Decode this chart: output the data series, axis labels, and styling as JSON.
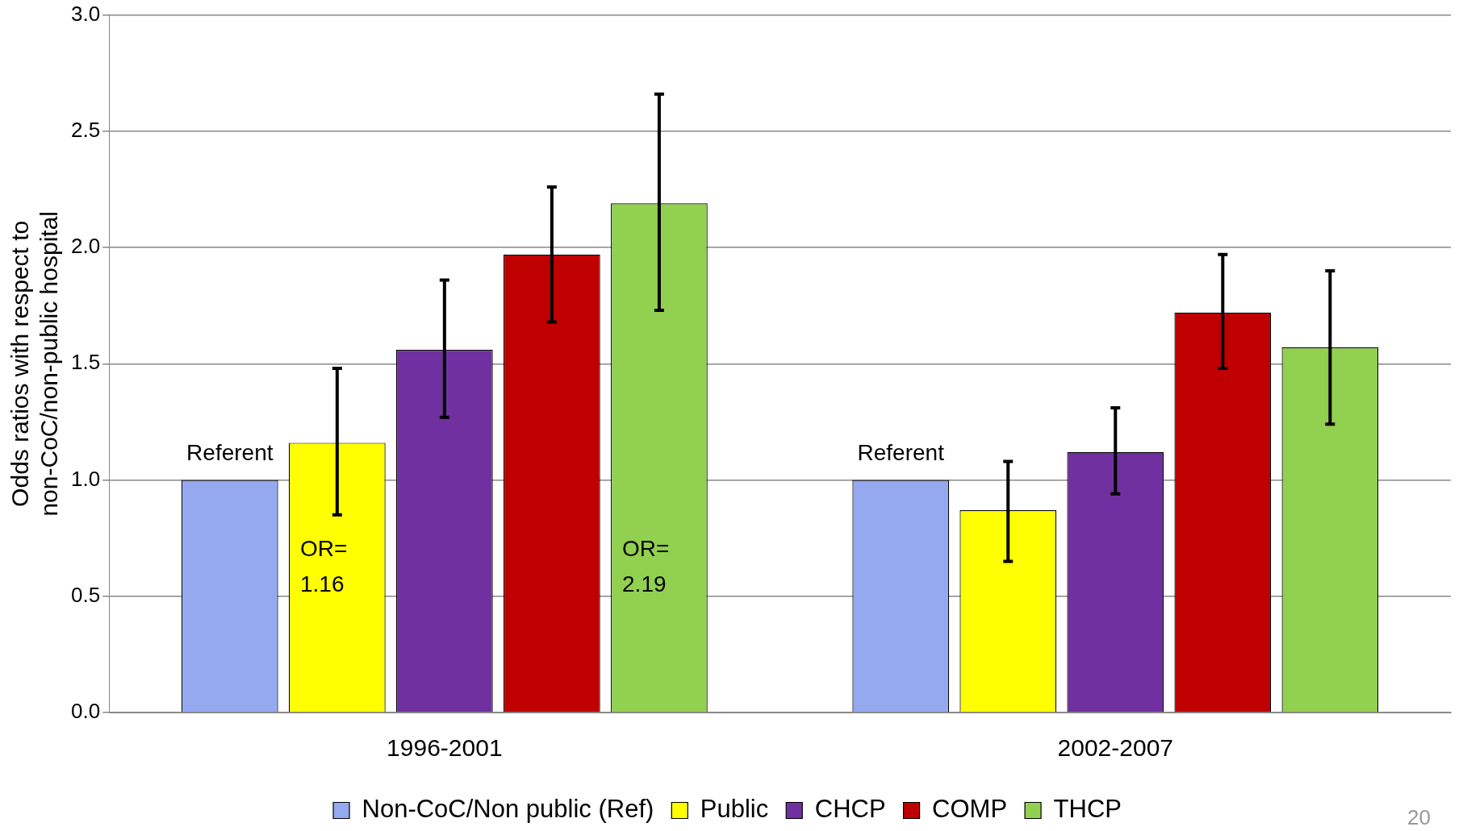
{
  "chart_data": {
    "type": "bar",
    "ylabel": "Odds ratios with respect to non-CoC/non-public hospital",
    "categories": [
      "1996-2001",
      "2002-2007"
    ],
    "series": [
      {
        "name": "Non-CoC/Non public (Ref)",
        "color": "#94a9ef",
        "values": [
          1.0,
          1.0
        ],
        "value_labels": [
          "Referent",
          "Referent"
        ]
      },
      {
        "name": "Public",
        "color": "#ffff00",
        "values": [
          1.16,
          0.87
        ],
        "errors": [
          [
            0.85,
            1.48
          ],
          [
            0.65,
            1.08
          ]
        ],
        "value_labels": [
          "OR= 1.16",
          null
        ]
      },
      {
        "name": "CHCP",
        "color": "#7030a0",
        "values": [
          1.56,
          1.12
        ],
        "errors": [
          [
            1.27,
            1.86
          ],
          [
            0.94,
            1.31
          ]
        ]
      },
      {
        "name": "COMP",
        "color": "#c00000",
        "values": [
          1.97,
          1.72
        ],
        "errors": [
          [
            1.68,
            2.26
          ],
          [
            1.48,
            1.97
          ]
        ]
      },
      {
        "name": "THCP",
        "color": "#92d050",
        "values": [
          2.19,
          1.57
        ],
        "errors": [
          [
            1.73,
            2.66
          ],
          [
            1.24,
            1.9
          ]
        ],
        "value_labels": [
          "OR= 2.19",
          null
        ]
      }
    ],
    "ylim": [
      0,
      3
    ],
    "yticks": [
      {
        "value": 0,
        "label": "0.0"
      },
      {
        "value": 0.5,
        "label": "0.5"
      },
      {
        "value": 1,
        "label": "1.0"
      },
      {
        "value": 1.5,
        "label": "1.5"
      },
      {
        "value": 2,
        "label": "2.0"
      },
      {
        "value": 2.5,
        "label": "2.5"
      },
      {
        "value": 3,
        "label": "3.0"
      }
    ],
    "grid": "y",
    "legend": "bottom",
    "annotations": [
      "20"
    ]
  }
}
